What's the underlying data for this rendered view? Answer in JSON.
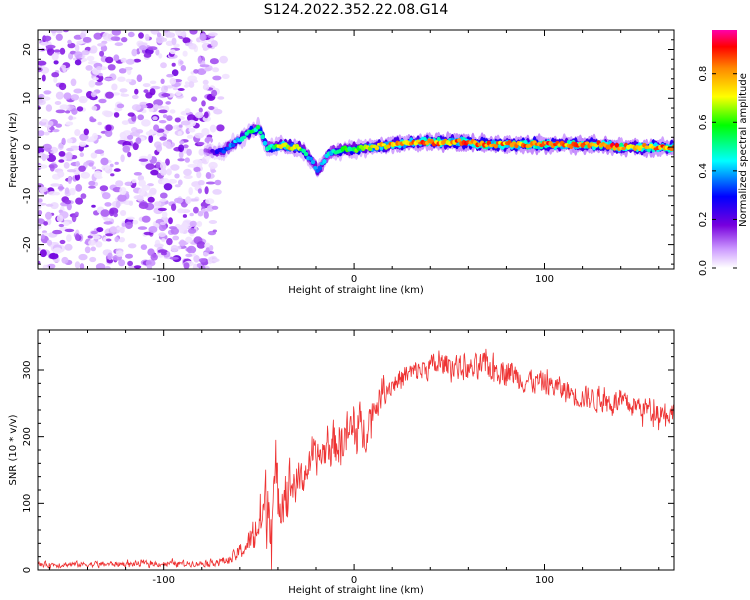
{
  "title": "S124.2022.352.22.08.G14",
  "chart_data": [
    {
      "type": "heatmap",
      "xlabel": "Height of straight line (km)",
      "ylabel": "Frequency (Hz)",
      "xlim": [
        -166,
        168
      ],
      "ylim": [
        -25,
        24
      ],
      "x_ticks": [
        -100,
        0,
        100
      ],
      "y_ticks": [
        -20,
        -10,
        0,
        10,
        20
      ],
      "colorbar": {
        "label": "Normalized spectral amplitude",
        "range": [
          0,
          0.98
        ],
        "ticks": [
          0.0,
          0.2,
          0.4,
          0.6,
          0.8
        ],
        "colors": [
          "#ffffff",
          "#cc99ff",
          "#7700dd",
          "#0000ff",
          "#00ffff",
          "#00ff00",
          "#ffff00",
          "#ff8800",
          "#ff0000",
          "#ff00aa"
        ]
      },
      "noise_region_x": [
        -166,
        -72
      ],
      "noise_amplitude_range": [
        0.02,
        0.15
      ],
      "ridge": {
        "x": [
          -78,
          -70,
          -62,
          -55,
          -50,
          -46,
          -42,
          -38,
          -34,
          -30,
          -26,
          -22,
          -19,
          -16,
          -13,
          -10,
          -5,
          0,
          10,
          20,
          30,
          40,
          50,
          60,
          70,
          80,
          90,
          100,
          110,
          120,
          130,
          140,
          150,
          160,
          168
        ],
        "frequency": [
          -1,
          -1,
          1,
          3,
          4,
          0,
          0,
          0.5,
          0,
          0,
          -1,
          -3,
          -5,
          -3,
          -1,
          -1,
          -0.5,
          -0.5,
          0,
          0.5,
          1,
          1,
          1,
          1,
          0.5,
          0.5,
          0.5,
          0.5,
          0.5,
          0.5,
          0.5,
          0,
          0,
          0,
          0
        ],
        "amplitude": [
          0.12,
          0.3,
          0.4,
          0.5,
          0.55,
          0.45,
          0.55,
          0.7,
          0.75,
          0.7,
          0.5,
          0.4,
          0.35,
          0.4,
          0.45,
          0.5,
          0.55,
          0.6,
          0.7,
          0.8,
          0.8,
          0.85,
          0.8,
          0.85,
          0.85,
          0.8,
          0.85,
          0.85,
          0.8,
          0.85,
          0.85,
          0.85,
          0.8,
          0.85,
          0.8
        ]
      }
    },
    {
      "type": "line",
      "xlabel": "Height of straight line (km)",
      "ylabel": "SNR (10 * v/v)",
      "xlim": [
        -166,
        168
      ],
      "ylim": [
        0,
        360
      ],
      "x_ticks": [
        -100,
        0,
        100
      ],
      "y_ticks": [
        0,
        100,
        200,
        300
      ],
      "color": "#ee3333",
      "envelope": {
        "x": [
          -166,
          -120,
          -80,
          -65,
          -55,
          -50,
          -45,
          -40,
          -35,
          -30,
          -25,
          -20,
          -15,
          -10,
          -5,
          0,
          5,
          10,
          15,
          20,
          30,
          40,
          50,
          60,
          70,
          80,
          90,
          100,
          110,
          120,
          130,
          140,
          150,
          160,
          168
        ],
        "mean": [
          8,
          9,
          10,
          15,
          40,
          70,
          100,
          110,
          130,
          130,
          150,
          165,
          180,
          190,
          200,
          205,
          210,
          240,
          265,
          280,
          295,
          305,
          310,
          300,
          305,
          300,
          285,
          280,
          270,
          260,
          255,
          250,
          245,
          240,
          235
        ],
        "spread": [
          6,
          6,
          6,
          10,
          25,
          60,
          90,
          70,
          60,
          40,
          30,
          35,
          40,
          50,
          50,
          60,
          50,
          30,
          25,
          25,
          25,
          25,
          25,
          25,
          30,
          30,
          25,
          25,
          25,
          25,
          25,
          25,
          25,
          25,
          25
        ]
      }
    }
  ]
}
